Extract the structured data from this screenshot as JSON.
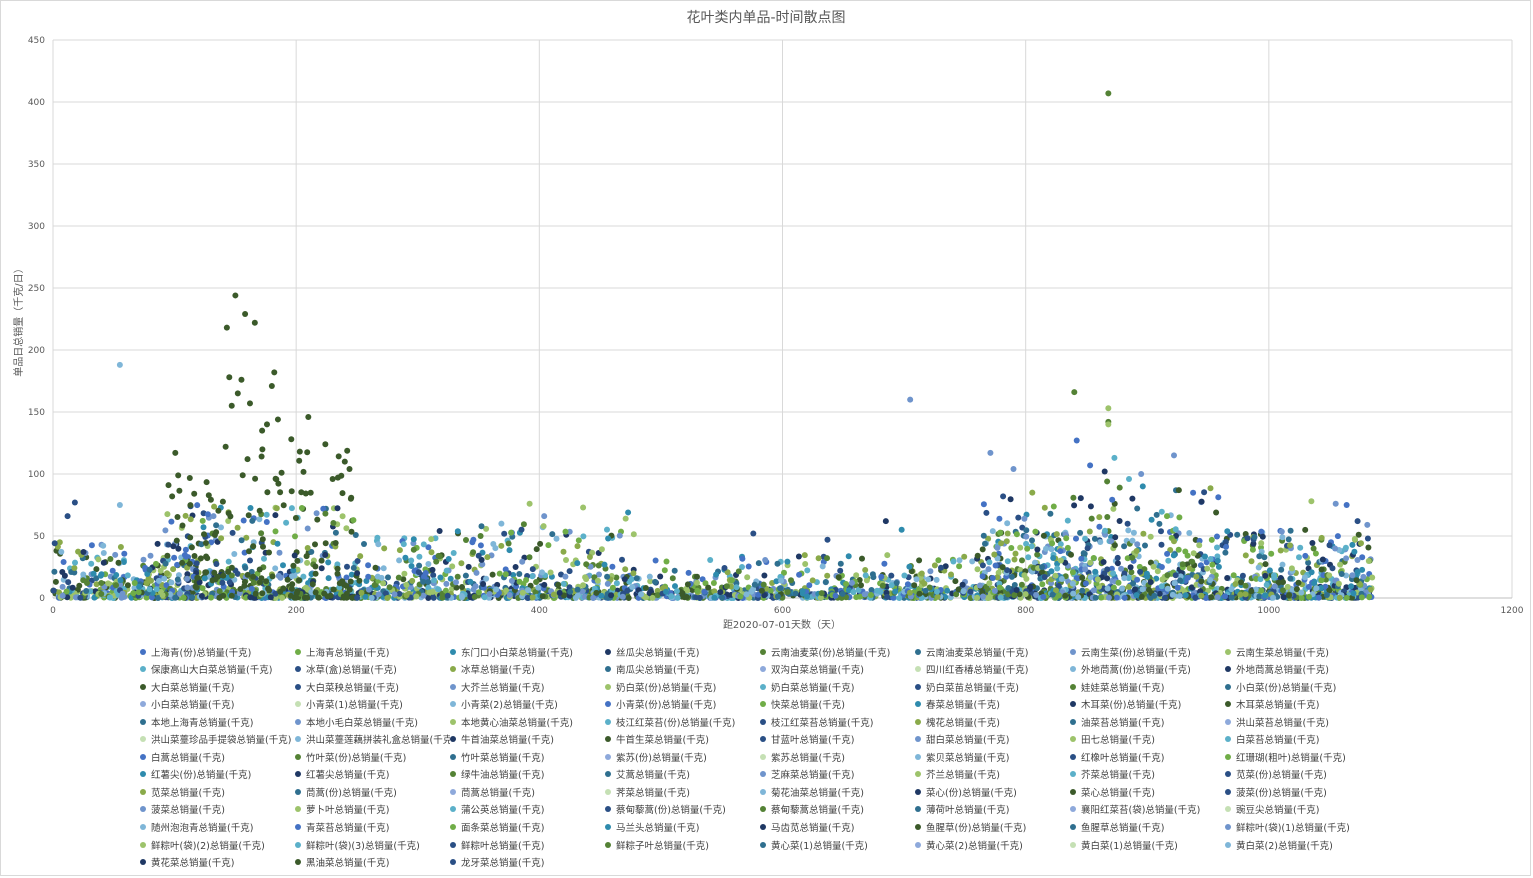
{
  "chart_data": {
    "type": "scatter",
    "title": "花叶类内单品-时间散点图",
    "xlabel": "距2020-07-01天数（天）",
    "ylabel": "单品日总销量（千克/日）",
    "xlim": [
      0,
      1200
    ],
    "ylim": [
      0,
      450
    ],
    "x_ticks": [
      0,
      200,
      400,
      600,
      800,
      1000,
      1200
    ],
    "y_ticks": [
      0,
      50,
      100,
      150,
      200,
      250,
      300,
      350,
      400,
      450
    ],
    "grid": true,
    "legend_position": "bottom",
    "palette": [
      "#4472c4",
      "#70ad47",
      "#2e8bad",
      "#1f3864",
      "#548235",
      "#2f6f8f",
      "#6f94cc",
      "#9dc36b",
      "#5bb0c9",
      "#2a4f85",
      "#8aaa4a",
      "#7fb6d8",
      "#3b5a2a"
    ],
    "series": [
      {
        "name": "上海青(份)总销量(千克)",
        "color": "#4472c4"
      },
      {
        "name": "上海青总销量(千克)",
        "color": "#70ad47"
      },
      {
        "name": "东门口小白菜总销量(千克)",
        "color": "#2e8bad"
      },
      {
        "name": "丝瓜尖总销量(千克)",
        "color": "#1f3864"
      },
      {
        "name": "云南油麦菜(份)总销量(千克)",
        "color": "#548235"
      },
      {
        "name": "云南油麦菜总销量(千克)",
        "color": "#2f6f8f"
      },
      {
        "name": "云南生菜(份)总销量(千克)",
        "color": "#6f94cc"
      },
      {
        "name": "云南生菜总销量(千克)",
        "color": "#9dc36b"
      },
      {
        "name": "保康高山大白菜总销量(千克)",
        "color": "#5bb0c9"
      },
      {
        "name": "冰草(盒)总销量(千克)",
        "color": "#2a4f85"
      },
      {
        "name": "冰草总销量(千克)",
        "color": "#8aaa4a"
      },
      {
        "name": "南瓜尖总销量(千克)",
        "color": "#2f6f8f"
      },
      {
        "name": "双沟白菜总销量(千克)",
        "color": "#8ea9db"
      },
      {
        "name": "四川红香椿总销量(千克)",
        "color": "#c5e0b4"
      },
      {
        "name": "外地茼蒿(份)总销量(千克)",
        "color": "#7fb6d8"
      },
      {
        "name": "外地茼蒿总销量(千克)",
        "color": "#1f3864"
      },
      {
        "name": "大白菜总销量(千克)",
        "color": "#3b5a2a"
      },
      {
        "name": "大白菜秧总销量(千克)",
        "color": "#2a4f85"
      },
      {
        "name": "大芥兰总销量(千克)",
        "color": "#6f94cc"
      },
      {
        "name": "奶白菜(份)总销量(千克)",
        "color": "#9dc36b"
      },
      {
        "name": "奶白菜总销量(千克)",
        "color": "#5bb0c9"
      },
      {
        "name": "奶白菜苗总销量(千克)",
        "color": "#2a4f85"
      },
      {
        "name": "娃娃菜总销量(千克)",
        "color": "#548235"
      },
      {
        "name": "小白菜(份)总销量(千克)",
        "color": "#2f6f8f"
      },
      {
        "name": "小白菜总销量(千克)",
        "color": "#8ea9db"
      },
      {
        "name": "小青菜(1)总销量(千克)",
        "color": "#c5e0b4"
      },
      {
        "name": "小青菜(2)总销量(千克)",
        "color": "#7fb6d8"
      },
      {
        "name": "小青菜(份)总销量(千克)",
        "color": "#4472c4"
      },
      {
        "name": "快菜总销量(千克)",
        "color": "#70ad47"
      },
      {
        "name": "春菜总销量(千克)",
        "color": "#2e8bad"
      },
      {
        "name": "木耳菜(份)总销量(千克)",
        "color": "#1f3864"
      },
      {
        "name": "木耳菜总销量(千克)",
        "color": "#3b5a2a"
      },
      {
        "name": "本地上海青总销量(千克)",
        "color": "#2f6f8f"
      },
      {
        "name": "本地小毛白菜总销量(千克)",
        "color": "#6f94cc"
      },
      {
        "name": "本地黄心油菜总销量(千克)",
        "color": "#9dc36b"
      },
      {
        "name": "枝江红菜苔(份)总销量(千克)",
        "color": "#5bb0c9"
      },
      {
        "name": "枝江红菜苔总销量(千克)",
        "color": "#2a4f85"
      },
      {
        "name": "槐花总销量(千克)",
        "color": "#8aaa4a"
      },
      {
        "name": "油菜苔总销量(千克)",
        "color": "#2f6f8f"
      },
      {
        "name": "洪山菜苔总销量(千克)",
        "color": "#8ea9db"
      },
      {
        "name": "洪山菜薹珍品手提袋总销量(千克)",
        "color": "#c5e0b4"
      },
      {
        "name": "洪山菜薹莲藕拼装礼盒总销量(千克)",
        "color": "#7fb6d8"
      },
      {
        "name": "牛首油菜总销量(千克)",
        "color": "#1f3864"
      },
      {
        "name": "牛首生菜总销量(千克)",
        "color": "#3b5a2a"
      },
      {
        "name": "甘蓝叶总销量(千克)",
        "color": "#2a4f85"
      },
      {
        "name": "甜白菜总销量(千克)",
        "color": "#6f94cc"
      },
      {
        "name": "田七总销量(千克)",
        "color": "#9dc36b"
      },
      {
        "name": "白菜苔总销量(千克)",
        "color": "#5bb0c9"
      },
      {
        "name": "白蒿总销量(千克)",
        "color": "#4472c4"
      },
      {
        "name": "竹叶菜(份)总销量(千克)",
        "color": "#548235"
      },
      {
        "name": "竹叶菜总销量(千克)",
        "color": "#2f6f8f"
      },
      {
        "name": "紫苏(份)总销量(千克)",
        "color": "#8ea9db"
      },
      {
        "name": "紫苏总销量(千克)",
        "color": "#c5e0b4"
      },
      {
        "name": "紫贝菜总销量(千克)",
        "color": "#7fb6d8"
      },
      {
        "name": "红橡叶总销量(千克)",
        "color": "#2a4f85"
      },
      {
        "name": "红珊瑚(粗叶)总销量(千克)",
        "color": "#70ad47"
      },
      {
        "name": "红薯尖(份)总销量(千克)",
        "color": "#2e8bad"
      },
      {
        "name": "红薯尖总销量(千克)",
        "color": "#1f3864"
      },
      {
        "name": "绿牛油总销量(千克)",
        "color": "#548235"
      },
      {
        "name": "艾蒿总销量(千克)",
        "color": "#2f6f8f"
      },
      {
        "name": "芝麻菜总销量(千克)",
        "color": "#6f94cc"
      },
      {
        "name": "芥兰总销量(千克)",
        "color": "#9dc36b"
      },
      {
        "name": "芥菜总销量(千克)",
        "color": "#5bb0c9"
      },
      {
        "name": "苋菜(份)总销量(千克)",
        "color": "#2a4f85"
      },
      {
        "name": "苋菜总销量(千克)",
        "color": "#8aaa4a"
      },
      {
        "name": "茼蒿(份)总销量(千克)",
        "color": "#2f6f8f"
      },
      {
        "name": "茼蒿总销量(千克)",
        "color": "#8ea9db"
      },
      {
        "name": "荠菜总销量(千克)",
        "color": "#c5e0b4"
      },
      {
        "name": "菊花油菜总销量(千克)",
        "color": "#7fb6d8"
      },
      {
        "name": "菜心(份)总销量(千克)",
        "color": "#1f3864"
      },
      {
        "name": "菜心总销量(千克)",
        "color": "#3b5a2a"
      },
      {
        "name": "菠菜(份)总销量(千克)",
        "color": "#2a4f85"
      },
      {
        "name": "菠菜总销量(千克)",
        "color": "#6f94cc"
      },
      {
        "name": "萝卜叶总销量(千克)",
        "color": "#9dc36b"
      },
      {
        "name": "蒲公英总销量(千克)",
        "color": "#5bb0c9"
      },
      {
        "name": "蔡甸藜蒿(份)总销量(千克)",
        "color": "#2a4f85"
      },
      {
        "name": "蔡甸藜蒿总销量(千克)",
        "color": "#548235"
      },
      {
        "name": "薄荷叶总销量(千克)",
        "color": "#2f6f8f"
      },
      {
        "name": "襄阳红菜苔(袋)总销量(千克)",
        "color": "#8ea9db"
      },
      {
        "name": "豌豆尖总销量(千克)",
        "color": "#c5e0b4"
      },
      {
        "name": "随州泡泡青总销量(千克)",
        "color": "#7fb6d8"
      },
      {
        "name": "青菜苔总销量(千克)",
        "color": "#4472c4"
      },
      {
        "name": "面条菜总销量(千克)",
        "color": "#70ad47"
      },
      {
        "name": "马兰头总销量(千克)",
        "color": "#2e8bad"
      },
      {
        "name": "马齿苋总销量(千克)",
        "color": "#1f3864"
      },
      {
        "name": "鱼腥草(份)总销量(千克)",
        "color": "#3b5a2a"
      },
      {
        "name": "鱼腥草总销量(千克)",
        "color": "#2f6f8f"
      },
      {
        "name": "鲜粽叶(袋)(1)总销量(千克)",
        "color": "#6f94cc"
      },
      {
        "name": "鲜粽叶(袋)(2)总销量(千克)",
        "color": "#9dc36b"
      },
      {
        "name": "鲜粽叶(袋)(3)总销量(千克)",
        "color": "#5bb0c9"
      },
      {
        "name": "鲜粽叶总销量(千克)",
        "color": "#2a4f85"
      },
      {
        "name": "鲜粽子叶总销量(千克)",
        "color": "#548235"
      },
      {
        "name": "黄心菜(1)总销量(千克)",
        "color": "#2f6f8f"
      },
      {
        "name": "黄心菜(2)总销量(千克)",
        "color": "#8ea9db"
      },
      {
        "name": "黄白菜(1)总销量(千克)",
        "color": "#c5e0b4"
      },
      {
        "name": "黄白菜(2)总销量(千克)",
        "color": "#7fb6d8"
      },
      {
        "name": "黄花菜总销量(千克)",
        "color": "#1f3864"
      },
      {
        "name": "黑油菜总销量(千克)",
        "color": "#3b5a2a"
      },
      {
        "name": "龙牙菜总销量(千克)",
        "color": "#2a4f85"
      }
    ],
    "highlight_points": [
      {
        "x": 868,
        "y": 407,
        "color": "#548235"
      },
      {
        "x": 150,
        "y": 244,
        "color": "#3b5a2a"
      },
      {
        "x": 158,
        "y": 229,
        "color": "#3b5a2a"
      },
      {
        "x": 143,
        "y": 218,
        "color": "#3b5a2a"
      },
      {
        "x": 166,
        "y": 222,
        "color": "#3b5a2a"
      },
      {
        "x": 55,
        "y": 188,
        "color": "#7fb6d8"
      },
      {
        "x": 145,
        "y": 178,
        "color": "#3b5a2a"
      },
      {
        "x": 155,
        "y": 176,
        "color": "#3b5a2a"
      },
      {
        "x": 182,
        "y": 182,
        "color": "#3b5a2a"
      },
      {
        "x": 180,
        "y": 171,
        "color": "#3b5a2a"
      },
      {
        "x": 152,
        "y": 165,
        "color": "#3b5a2a"
      },
      {
        "x": 162,
        "y": 157,
        "color": "#3b5a2a"
      },
      {
        "x": 147,
        "y": 155,
        "color": "#3b5a2a"
      },
      {
        "x": 210,
        "y": 146,
        "color": "#3b5a2a"
      },
      {
        "x": 185,
        "y": 144,
        "color": "#3b5a2a"
      },
      {
        "x": 176,
        "y": 140,
        "color": "#3b5a2a"
      },
      {
        "x": 172,
        "y": 135,
        "color": "#3b5a2a"
      },
      {
        "x": 196,
        "y": 128,
        "color": "#3b5a2a"
      },
      {
        "x": 224,
        "y": 124,
        "color": "#3b5a2a"
      },
      {
        "x": 142,
        "y": 122,
        "color": "#3b5a2a"
      },
      {
        "x": 203,
        "y": 118,
        "color": "#3b5a2a"
      },
      {
        "x": 240,
        "y": 110,
        "color": "#3b5a2a"
      },
      {
        "x": 160,
        "y": 112,
        "color": "#3b5a2a"
      },
      {
        "x": 188,
        "y": 101,
        "color": "#3b5a2a"
      },
      {
        "x": 95,
        "y": 91,
        "color": "#3b5a2a"
      },
      {
        "x": 230,
        "y": 96,
        "color": "#3b5a2a"
      },
      {
        "x": 245,
        "y": 80,
        "color": "#3b5a2a"
      },
      {
        "x": 12,
        "y": 66,
        "color": "#2a4f85"
      },
      {
        "x": 18,
        "y": 77,
        "color": "#2a4f85"
      },
      {
        "x": 55,
        "y": 75,
        "color": "#7fb6d8"
      },
      {
        "x": 705,
        "y": 160,
        "color": "#6f94cc"
      },
      {
        "x": 840,
        "y": 166,
        "color": "#548235"
      },
      {
        "x": 868,
        "y": 153,
        "color": "#9dc36b"
      },
      {
        "x": 868,
        "y": 142,
        "color": "#548235"
      },
      {
        "x": 868,
        "y": 140,
        "color": "#9dc36b"
      },
      {
        "x": 842,
        "y": 127,
        "color": "#4472c4"
      },
      {
        "x": 771,
        "y": 117,
        "color": "#6f94cc"
      },
      {
        "x": 922,
        "y": 115,
        "color": "#6f94cc"
      },
      {
        "x": 873,
        "y": 113,
        "color": "#5bb0c9"
      },
      {
        "x": 853,
        "y": 107,
        "color": "#4472c4"
      },
      {
        "x": 790,
        "y": 104,
        "color": "#6f94cc"
      },
      {
        "x": 865,
        "y": 102,
        "color": "#1f3864"
      },
      {
        "x": 895,
        "y": 100,
        "color": "#6f94cc"
      },
      {
        "x": 885,
        "y": 96,
        "color": "#5bb0c9"
      },
      {
        "x": 867,
        "y": 94,
        "color": "#548235"
      },
      {
        "x": 926,
        "y": 87,
        "color": "#3b5a2a"
      },
      {
        "x": 1035,
        "y": 78,
        "color": "#9dc36b"
      },
      {
        "x": 1055,
        "y": 76,
        "color": "#6f94cc"
      },
      {
        "x": 1064,
        "y": 75,
        "color": "#4472c4"
      },
      {
        "x": 1073,
        "y": 62,
        "color": "#2a4f85"
      },
      {
        "x": 1081,
        "y": 59,
        "color": "#6f94cc"
      },
      {
        "x": 392,
        "y": 76,
        "color": "#9dc36b"
      },
      {
        "x": 436,
        "y": 73,
        "color": "#9dc36b"
      },
      {
        "x": 473,
        "y": 69,
        "color": "#2e8bad"
      },
      {
        "x": 404,
        "y": 66,
        "color": "#6f94cc"
      },
      {
        "x": 471,
        "y": 64,
        "color": "#9dc36b"
      },
      {
        "x": 685,
        "y": 62,
        "color": "#1f3864"
      },
      {
        "x": 698,
        "y": 55,
        "color": "#2e8bad"
      },
      {
        "x": 576,
        "y": 52,
        "color": "#2a4f85"
      },
      {
        "x": 637,
        "y": 47,
        "color": "#2a4f85"
      },
      {
        "x": 318,
        "y": 54,
        "color": "#1f3864"
      },
      {
        "x": 98,
        "y": 82,
        "color": "#3b5a2a"
      }
    ],
    "clusters": [
      {
        "x_range": [
          0,
          1085
        ],
        "y_max": 8,
        "count": 900
      },
      {
        "x_range": [
          0,
          1085
        ],
        "y_max": 20,
        "count": 700
      },
      {
        "x_range": [
          0,
          120
        ],
        "y_max": 45,
        "count": 200
      },
      {
        "x_range": [
          90,
          250
        ],
        "y_max": 75,
        "count": 260
      },
      {
        "x_range": [
          100,
          250
        ],
        "y_max": 120,
        "count": 120,
        "colors": [
          "#3b5a2a"
        ]
      },
      {
        "x_range": [
          250,
          330
        ],
        "y_max": 50,
        "count": 120
      },
      {
        "x_range": [
          330,
          480
        ],
        "y_max": 60,
        "count": 200
      },
      {
        "x_range": [
          480,
          780
        ],
        "y_max": 35,
        "count": 260
      },
      {
        "x_range": [
          760,
          1085
        ],
        "y_max": 55,
        "count": 700
      },
      {
        "x_range": [
          760,
          960
        ],
        "y_max": 90,
        "count": 160
      }
    ]
  }
}
